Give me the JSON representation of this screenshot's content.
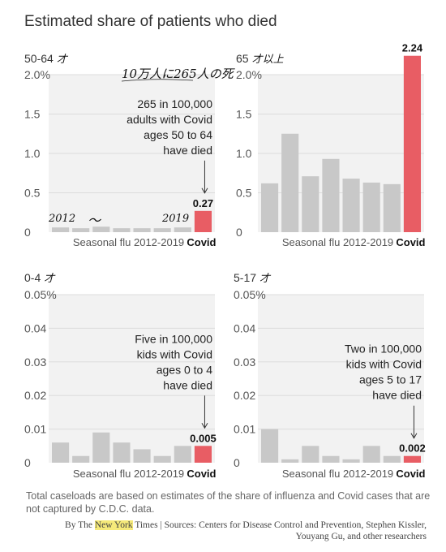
{
  "title": "Estimated share of patients who died",
  "footnote": "Total caseloads are based on estimates of the share of influenza and Covid cases that are not captured by C.D.C. data.",
  "credit": {
    "by": "By The",
    "brand": "New York",
    "rest": "Times | Sources: Centers for Disease Control and Prevention, Stephen Kissler,",
    "line2": "Youyang Gu, and other researchers"
  },
  "handwritten": {
    "note_top": "10万人に265人の死",
    "year_start": "2012",
    "tilde": "〜",
    "year_end": "2019"
  },
  "colors": {
    "flu": "#c8c8c8",
    "covid": "#e85d64",
    "panel_bg": "#f2f2f2",
    "grid": "#dcdcdc"
  },
  "chart_data": [
    {
      "type": "bar",
      "group_label": "50-64",
      "group_label_hand": "才",
      "yticks": [
        "2.0%",
        "1.5",
        "1.0",
        "0.5",
        "0"
      ],
      "ylim": [
        0,
        2.0
      ],
      "flu_values": [
        0.06,
        0.05,
        0.07,
        0.05,
        0.05,
        0.05,
        0.06
      ],
      "covid_value": 0.27,
      "covid_label": "0.27",
      "xlabel_flu": "Seasonal flu 2012-2019",
      "xlabel_covid": "Covid",
      "annotation": [
        "265 in 100,000",
        "adults with Covid",
        "ages 50 to 64",
        "have died"
      ]
    },
    {
      "type": "bar",
      "group_label": "65",
      "group_label_hand": "才以上",
      "yticks": [
        "2.0%",
        "1.5",
        "1.0",
        "0.5",
        "0"
      ],
      "ylim": [
        0,
        2.0
      ],
      "flu_values": [
        0.62,
        1.25,
        0.71,
        0.93,
        0.68,
        0.63,
        0.61
      ],
      "covid_value": 2.24,
      "covid_label": "2.24",
      "xlabel_flu": "Seasonal flu 2012-2019",
      "xlabel_covid": "Covid",
      "annotation": []
    },
    {
      "type": "bar",
      "group_label": "0-4",
      "group_label_hand": "才",
      "yticks": [
        "0.05%",
        "0.04",
        "0.03",
        "0.02",
        "0.01",
        "0"
      ],
      "ylim": [
        0,
        0.05
      ],
      "flu_values": [
        0.006,
        0.002,
        0.009,
        0.006,
        0.004,
        0.002,
        0.005
      ],
      "covid_value": 0.005,
      "covid_label": "0.005",
      "xlabel_flu": "Seasonal flu 2012-2019",
      "xlabel_covid": "Covid",
      "annotation": [
        "Five in 100,000",
        "kids with Covid",
        "ages 0 to 4",
        "have died"
      ]
    },
    {
      "type": "bar",
      "group_label": "5-17",
      "group_label_hand": "才",
      "yticks": [
        "0.05%",
        "0.04",
        "0.03",
        "0.02",
        "0.01",
        "0"
      ],
      "ylim": [
        0,
        0.05
      ],
      "flu_values": [
        0.01,
        0.001,
        0.005,
        0.002,
        0.001,
        0.005,
        0.002
      ],
      "covid_value": 0.002,
      "covid_label": "0.002",
      "xlabel_flu": "Seasonal flu 2012-2019",
      "xlabel_covid": "Covid",
      "annotation": [
        "Two in 100,000",
        "kids with Covid",
        "ages 5 to 17",
        "have died"
      ]
    }
  ]
}
